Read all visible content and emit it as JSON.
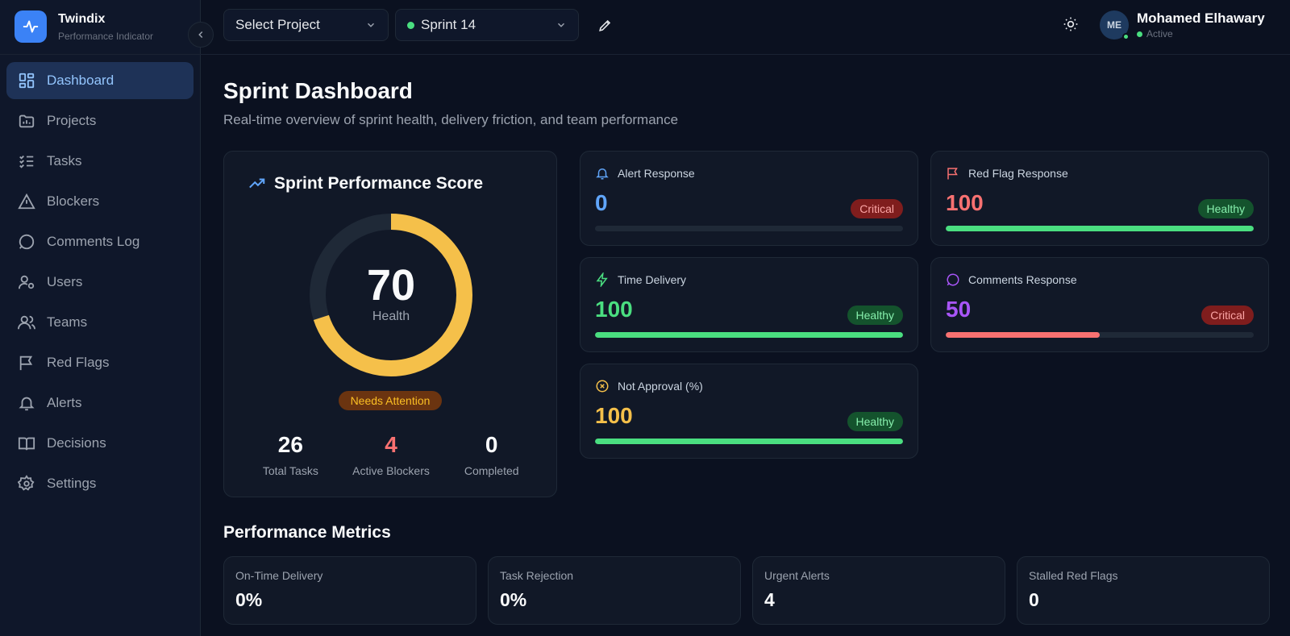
{
  "brand": {
    "name": "Twindix",
    "subtitle": "Performance Indicator"
  },
  "sidebar": {
    "items": [
      {
        "label": "Dashboard",
        "icon": "dashboard-icon",
        "active": true
      },
      {
        "label": "Projects",
        "icon": "folder-icon"
      },
      {
        "label": "Tasks",
        "icon": "list-check-icon"
      },
      {
        "label": "Blockers",
        "icon": "warning-icon"
      },
      {
        "label": "Comments Log",
        "icon": "comment-icon"
      },
      {
        "label": "Users",
        "icon": "user-gear-icon"
      },
      {
        "label": "Teams",
        "icon": "users-icon"
      },
      {
        "label": "Red Flags",
        "icon": "flag-icon"
      },
      {
        "label": "Alerts",
        "icon": "bell-icon"
      },
      {
        "label": "Decisions",
        "icon": "book-icon"
      },
      {
        "label": "Settings",
        "icon": "gear-icon"
      }
    ]
  },
  "topbar": {
    "project_select": "Select Project",
    "sprint_select": "Sprint 14"
  },
  "user": {
    "initials": "ME",
    "name": "Mohamed Elhawary",
    "status": "Active"
  },
  "page": {
    "title": "Sprint Dashboard",
    "subtitle": "Real-time overview of sprint health, delivery friction, and team performance"
  },
  "score": {
    "title": "Sprint Performance Score",
    "value": "70",
    "label": "Health",
    "fraction": 0.7,
    "status": "Needs Attention",
    "stats": [
      {
        "value": "26",
        "label": "Total Tasks"
      },
      {
        "value": "4",
        "label": "Active Blockers"
      },
      {
        "value": "0",
        "label": "Completed"
      }
    ]
  },
  "metrics": {
    "alert": {
      "title": "Alert Response",
      "value": "0",
      "badge": "Critical",
      "fill": 0
    },
    "redflag": {
      "title": "Red Flag Response",
      "value": "100",
      "badge": "Healthy",
      "fill": 1
    },
    "time": {
      "title": "Time Delivery",
      "value": "100",
      "badge": "Healthy",
      "fill": 1
    },
    "comments": {
      "title": "Comments Response",
      "value": "50",
      "badge": "Critical",
      "fill": 0.5
    },
    "approval": {
      "title": "Not Approval (%)",
      "value": "100",
      "badge": "Healthy",
      "fill": 1
    }
  },
  "performance": {
    "title": "Performance Metrics",
    "cards": [
      {
        "label": "On-Time Delivery",
        "value": "0%"
      },
      {
        "label": "Task Rejection",
        "value": "0%"
      },
      {
        "label": "Urgent Alerts",
        "value": "4"
      },
      {
        "label": "Stalled Red Flags",
        "value": "0"
      }
    ]
  },
  "colors": {
    "accent": "#3b82f6",
    "gauge": "#f5c04a",
    "healthy": "#4ade80",
    "critical": "#f87171",
    "purple": "#a855f7",
    "warning": "#f5c04a"
  }
}
